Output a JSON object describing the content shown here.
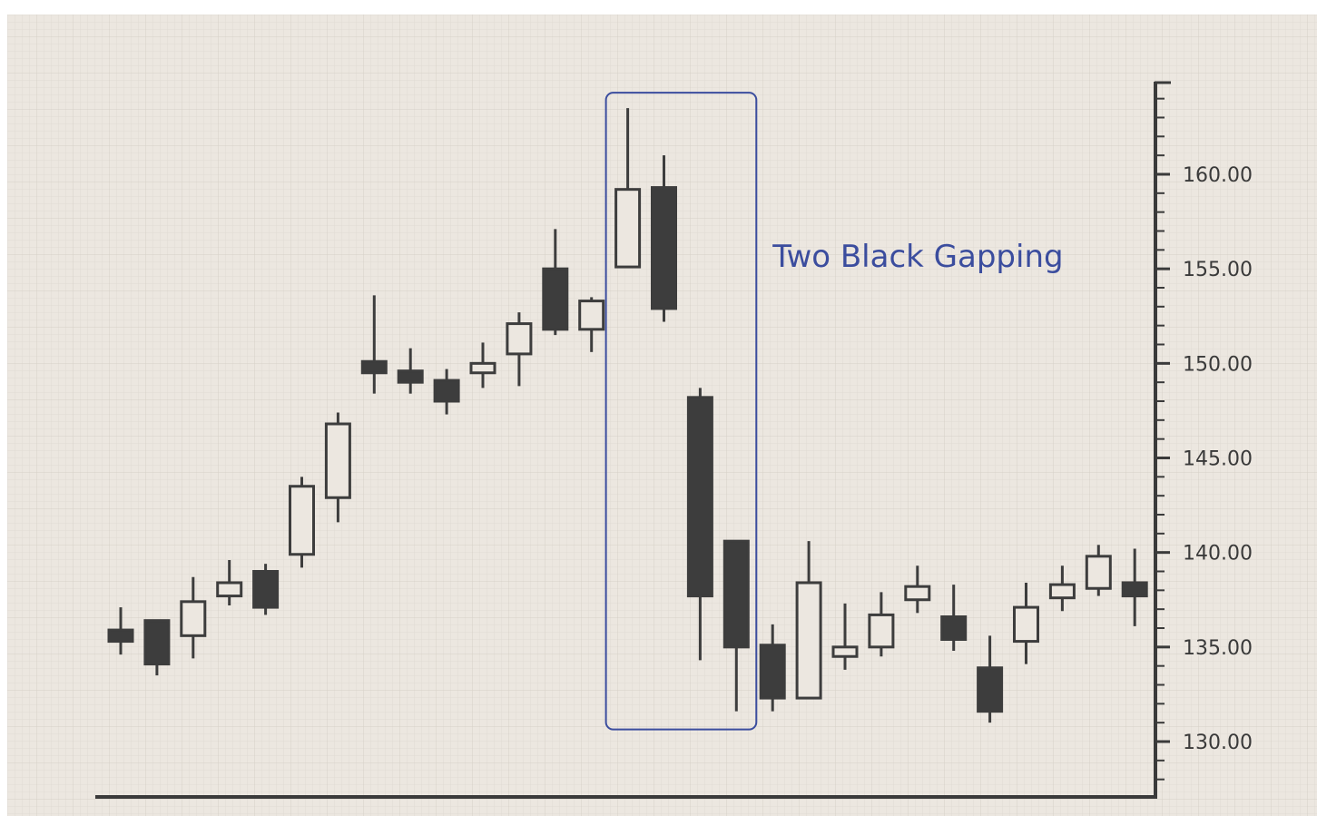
{
  "chart_data": {
    "type": "candlestick",
    "title": "",
    "xlabel": "",
    "ylabel": "",
    "ylim": [
      127,
      165
    ],
    "y_ticks": [
      "160.00",
      "155.00",
      "150.00",
      "145.00",
      "140.00",
      "135.00",
      "130.00"
    ],
    "grid": true,
    "candles": [
      {
        "open": 135.9,
        "close": 135.3,
        "high": 137.1,
        "low": 134.6
      },
      {
        "open": 136.4,
        "close": 134.1,
        "high": 136.4,
        "low": 133.5
      },
      {
        "open": 135.6,
        "close": 137.4,
        "high": 138.7,
        "low": 134.4
      },
      {
        "open": 137.7,
        "close": 138.4,
        "high": 139.6,
        "low": 137.2
      },
      {
        "open": 139.0,
        "close": 137.1,
        "high": 139.4,
        "low": 136.7
      },
      {
        "open": 139.9,
        "close": 143.5,
        "high": 144.0,
        "low": 139.2
      },
      {
        "open": 142.9,
        "close": 146.8,
        "high": 147.4,
        "low": 141.6
      },
      {
        "open": 150.1,
        "close": 149.5,
        "high": 153.6,
        "low": 148.4
      },
      {
        "open": 149.6,
        "close": 149.0,
        "high": 150.8,
        "low": 148.4
      },
      {
        "open": 149.1,
        "close": 148.0,
        "high": 149.7,
        "low": 147.3
      },
      {
        "open": 149.5,
        "close": 150.0,
        "high": 151.1,
        "low": 148.7
      },
      {
        "open": 150.5,
        "close": 152.1,
        "high": 152.7,
        "low": 148.8
      },
      {
        "open": 155.0,
        "close": 151.8,
        "high": 157.1,
        "low": 151.5
      },
      {
        "open": 151.8,
        "close": 153.3,
        "high": 153.5,
        "low": 150.6
      },
      {
        "open": 155.1,
        "close": 159.2,
        "high": 163.5,
        "low": 155.1
      },
      {
        "open": 159.3,
        "close": 152.9,
        "high": 161.0,
        "low": 152.2
      },
      {
        "open": 148.2,
        "close": 137.7,
        "high": 148.7,
        "low": 134.3
      },
      {
        "open": 140.6,
        "close": 135.0,
        "high": 140.6,
        "low": 131.6
      },
      {
        "open": 135.1,
        "close": 132.3,
        "high": 136.2,
        "low": 131.6
      },
      {
        "open": 132.3,
        "close": 138.4,
        "high": 140.6,
        "low": 132.3
      },
      {
        "open": 134.5,
        "close": 135.0,
        "high": 137.3,
        "low": 133.8
      },
      {
        "open": 135.0,
        "close": 136.7,
        "high": 137.9,
        "low": 134.5
      },
      {
        "open": 137.5,
        "close": 138.2,
        "high": 139.3,
        "low": 136.8
      },
      {
        "open": 136.6,
        "close": 135.4,
        "high": 138.3,
        "low": 134.8
      },
      {
        "open": 133.9,
        "close": 131.6,
        "high": 135.6,
        "low": 131.0
      },
      {
        "open": 135.3,
        "close": 137.1,
        "high": 138.4,
        "low": 134.1
      },
      {
        "open": 137.6,
        "close": 138.3,
        "high": 139.3,
        "low": 136.9
      },
      {
        "open": 138.1,
        "close": 139.8,
        "high": 140.4,
        "low": 137.7
      },
      {
        "open": 138.4,
        "close": 137.7,
        "high": 140.2,
        "low": 136.1
      }
    ],
    "annotation": {
      "label": "Two Black Gapping",
      "candle_range": [
        14,
        17
      ]
    },
    "colors": {
      "background": "#ece7e0",
      "grid": "#ddd8d0",
      "candle": "#3d3d3d",
      "hollow_fill": "#ece7e0",
      "annotation": "#3b4d9e"
    }
  }
}
